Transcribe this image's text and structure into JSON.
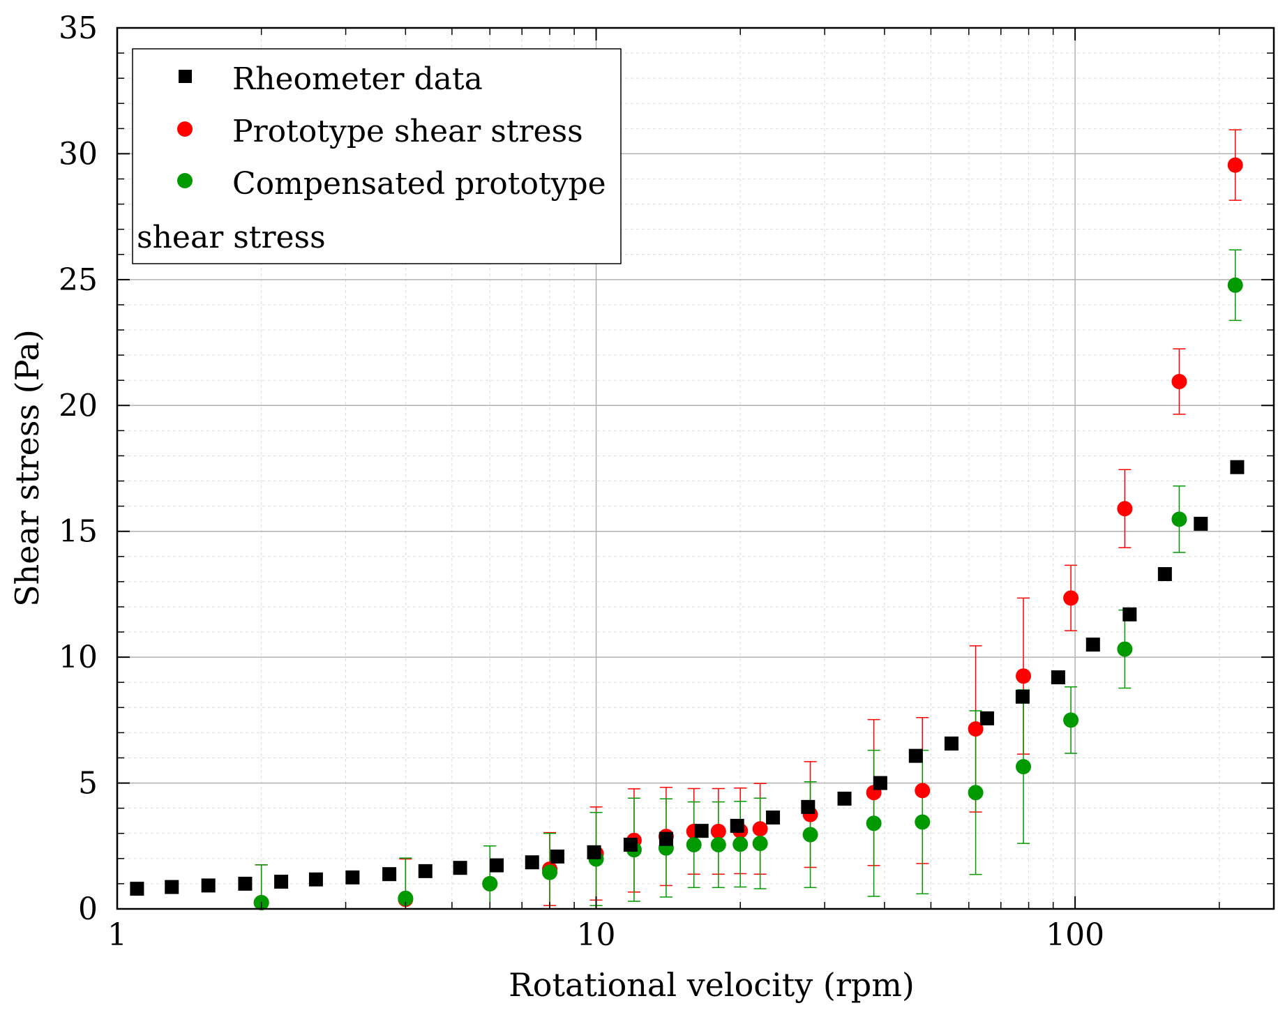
{
  "chart_data": {
    "type": "scatter",
    "xlabel": "Rotational velocity (rpm)",
    "ylabel": "Shear stress (Pa)",
    "x_scale": "log",
    "xlim": [
      1,
      260
    ],
    "ylim": [
      0,
      35
    ],
    "x_ticks": [
      "1",
      "10",
      "100"
    ],
    "y_ticks": [
      "0",
      "5",
      "10",
      "15",
      "20",
      "25",
      "30",
      "35"
    ],
    "grid": true,
    "legend": {
      "position": "top-left",
      "entries": [
        "Rheometer data",
        "Prototype shear stress",
        "Compensated prototype"
      ],
      "extra_text": "shear stress"
    },
    "series": [
      {
        "name": "Rheometer data",
        "marker": "square",
        "color": "#000000",
        "points": [
          [
            1.1,
            0.8
          ],
          [
            1.3,
            0.87
          ],
          [
            1.55,
            0.93
          ],
          [
            1.85,
            1.0
          ],
          [
            2.2,
            1.08
          ],
          [
            2.6,
            1.17
          ],
          [
            3.1,
            1.25
          ],
          [
            3.7,
            1.38
          ],
          [
            4.4,
            1.5
          ],
          [
            5.2,
            1.63
          ],
          [
            6.2,
            1.73
          ],
          [
            7.35,
            1.85
          ],
          [
            8.3,
            2.08
          ],
          [
            9.9,
            2.25
          ],
          [
            11.8,
            2.55
          ],
          [
            14.0,
            2.78
          ],
          [
            16.6,
            3.1
          ],
          [
            19.7,
            3.3
          ],
          [
            23.4,
            3.63
          ],
          [
            27.7,
            4.05
          ],
          [
            33.0,
            4.38
          ],
          [
            39.2,
            5.0
          ],
          [
            46.5,
            6.08
          ],
          [
            55.2,
            6.57
          ],
          [
            65.5,
            7.57
          ],
          [
            77.7,
            8.43
          ],
          [
            92.2,
            9.2
          ],
          [
            109,
            10.5
          ],
          [
            130,
            11.7
          ],
          [
            154,
            13.3
          ],
          [
            183,
            15.3
          ],
          [
            218,
            17.55
          ]
        ]
      },
      {
        "name": "Prototype shear stress",
        "marker": "circle",
        "color": "#ff0000",
        "points": [
          [
            2,
            0.25,
            1.5
          ],
          [
            4,
            0.38,
            1.6
          ],
          [
            6,
            1.0,
            1.5
          ],
          [
            8,
            1.58,
            1.45
          ],
          [
            10,
            2.2,
            1.85
          ],
          [
            12,
            2.72,
            2.05
          ],
          [
            14,
            2.88,
            1.95
          ],
          [
            16,
            3.08,
            1.7
          ],
          [
            18,
            3.08,
            1.7
          ],
          [
            20,
            3.1,
            1.7
          ],
          [
            22,
            3.18,
            1.8
          ],
          [
            28,
            3.75,
            2.1
          ],
          [
            38,
            4.62,
            2.9
          ],
          [
            48,
            4.7,
            2.9
          ],
          [
            62,
            7.15,
            3.3
          ],
          [
            78,
            9.25,
            3.1
          ],
          [
            98,
            12.35,
            1.3
          ],
          [
            127,
            15.9,
            1.55
          ],
          [
            165,
            20.95,
            1.3
          ],
          [
            216,
            29.55,
            1.4
          ]
        ]
      },
      {
        "name": "Compensated prototype",
        "marker": "circle",
        "color": "#009900",
        "points": [
          [
            2,
            0.25,
            1.5
          ],
          [
            4,
            0.42,
            1.6
          ],
          [
            6,
            1.0,
            1.5
          ],
          [
            8,
            1.45,
            1.55
          ],
          [
            10,
            1.98,
            1.85
          ],
          [
            12,
            2.35,
            2.05
          ],
          [
            14,
            2.42,
            1.95
          ],
          [
            16,
            2.55,
            1.7
          ],
          [
            18,
            2.55,
            1.7
          ],
          [
            20,
            2.57,
            1.7
          ],
          [
            22,
            2.6,
            1.8
          ],
          [
            28,
            2.95,
            2.1
          ],
          [
            38,
            3.4,
            2.9
          ],
          [
            48,
            3.45,
            2.85
          ],
          [
            62,
            4.62,
            3.25
          ],
          [
            78,
            5.65,
            3.05
          ],
          [
            98,
            7.5,
            1.32
          ],
          [
            127,
            10.32,
            1.55
          ],
          [
            165,
            15.48,
            1.32
          ],
          [
            216,
            24.78,
            1.4
          ]
        ]
      }
    ]
  }
}
